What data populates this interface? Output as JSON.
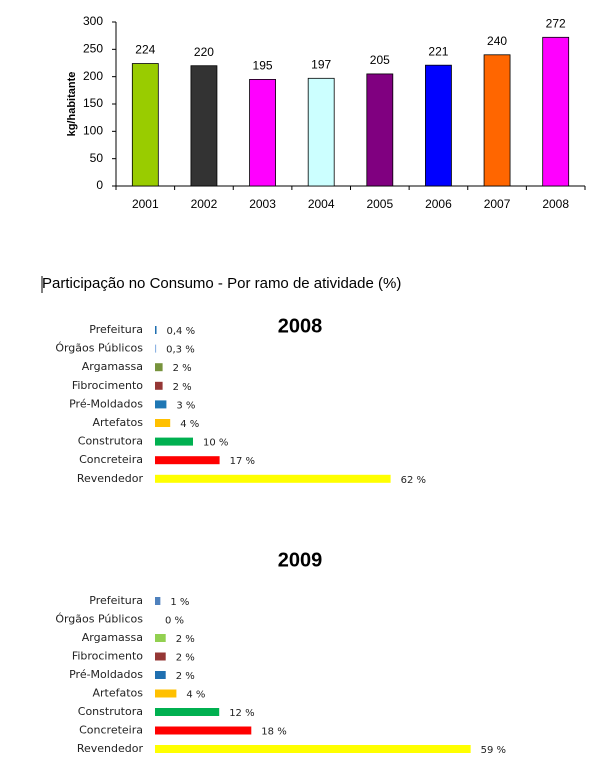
{
  "chart_data": [
    {
      "type": "bar",
      "ylabel": "kg/habitante",
      "categories": [
        "2001",
        "2002",
        "2003",
        "2004",
        "2005",
        "2006",
        "2007",
        "2008"
      ],
      "values": [
        224,
        220,
        195,
        197,
        205,
        221,
        240,
        272
      ],
      "colors": [
        "#99cc00",
        "#333333",
        "#ff00ff",
        "#ccffff",
        "#800080",
        "#0000ff",
        "#ff6600",
        "#ff00ff"
      ],
      "ylim": [
        0,
        300
      ],
      "yticks": [
        0,
        50,
        100,
        150,
        200,
        250,
        300
      ]
    },
    {
      "type": "hbar",
      "title": "2008",
      "categories": [
        "Prefeitura",
        "Órgãos Públicos",
        "Argamassa",
        "Fibrocimento",
        "Pré-Moldados",
        "Artefatos",
        "Construtora",
        "Concreteira",
        "Revendedor"
      ],
      "values": [
        0.4,
        0.3,
        2,
        2,
        3,
        4,
        10,
        17,
        62
      ],
      "value_labels": [
        "0,4 %",
        "0,3 %",
        "2 %",
        "2 %",
        "3 %",
        "4 %",
        "10 %",
        "17 %",
        "62 %"
      ],
      "colors": [
        "#1f6fb0",
        "#8eb4e3",
        "#77933c",
        "#953735",
        "#1f77b4",
        "#ffc000",
        "#00b050",
        "#ff0000",
        "#ffff00"
      ]
    },
    {
      "type": "hbar",
      "title": "2009",
      "categories": [
        "Prefeitura",
        "Órgãos Públicos",
        "Argamassa",
        "Fibrocimento",
        "Pré-Moldados",
        "Artefatos",
        "Construtora",
        "Concreteira",
        "Revendedor"
      ],
      "values": [
        1,
        0,
        2,
        2,
        2,
        4,
        12,
        18,
        59
      ],
      "value_labels": [
        "1 %",
        "0 %",
        "2 %",
        "2 %",
        "2 %",
        "4 %",
        "12 %",
        "18 %",
        "59 %"
      ],
      "colors": [
        "#4f81bd",
        "#8eb4e3",
        "#92d050",
        "#953735",
        "#1f6fb0",
        "#ffc000",
        "#00b050",
        "#ff0000",
        "#ffff00"
      ]
    }
  ],
  "heading": "Participação no Consumo - Por ramo de atividade (%)"
}
